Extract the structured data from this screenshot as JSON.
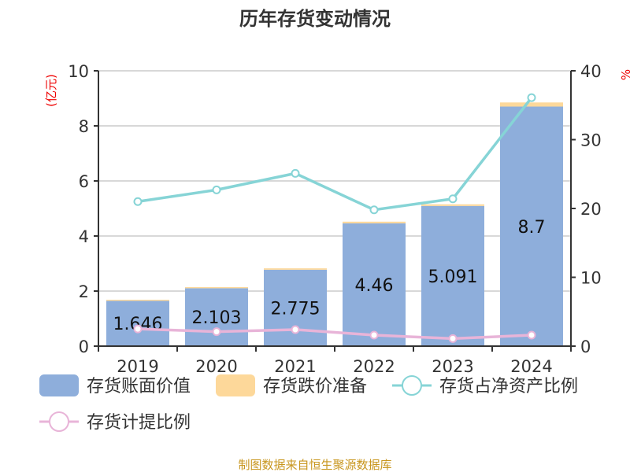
{
  "chart_data": {
    "type": "bar",
    "title": "历年存货变动情况",
    "categories": [
      "2019",
      "2020",
      "2021",
      "2022",
      "2023",
      "2024"
    ],
    "ylabel": "(亿元)",
    "ylabel_right": "%",
    "ylim": [
      0,
      10
    ],
    "ylim_right": [
      0,
      40
    ],
    "yticks": [
      "0",
      "2",
      "4",
      "6",
      "8",
      "10"
    ],
    "yticks_right": [
      "0",
      "10",
      "20",
      "30",
      "40"
    ],
    "grid": true,
    "legend_position": "bottom",
    "series": [
      {
        "name": "存货账面价值",
        "type": "bar",
        "axis": "left",
        "color": "#8eaedb",
        "values": [
          1.646,
          2.103,
          2.775,
          4.46,
          5.091,
          8.7
        ],
        "labels": [
          "1.646",
          "2.103",
          "2.775",
          "4.46",
          "5.091",
          "8.7"
        ]
      },
      {
        "name": "存货跌价准备",
        "type": "bar",
        "axis": "left",
        "color": "#fdd89a",
        "values": [
          0.04,
          0.04,
          0.05,
          0.06,
          0.06,
          0.15
        ]
      },
      {
        "name": "存货占净资产比例",
        "type": "line",
        "axis": "right",
        "color": "#86d4d6",
        "values": [
          21.0,
          22.7,
          25.1,
          19.8,
          21.4,
          36.1
        ]
      },
      {
        "name": "存货计提比例",
        "type": "line",
        "axis": "right",
        "color": "#e8b4d8",
        "values": [
          2.5,
          2.1,
          2.4,
          1.6,
          1.1,
          1.6
        ]
      }
    ]
  },
  "footer": "制图数据来自恒生聚源数据库"
}
